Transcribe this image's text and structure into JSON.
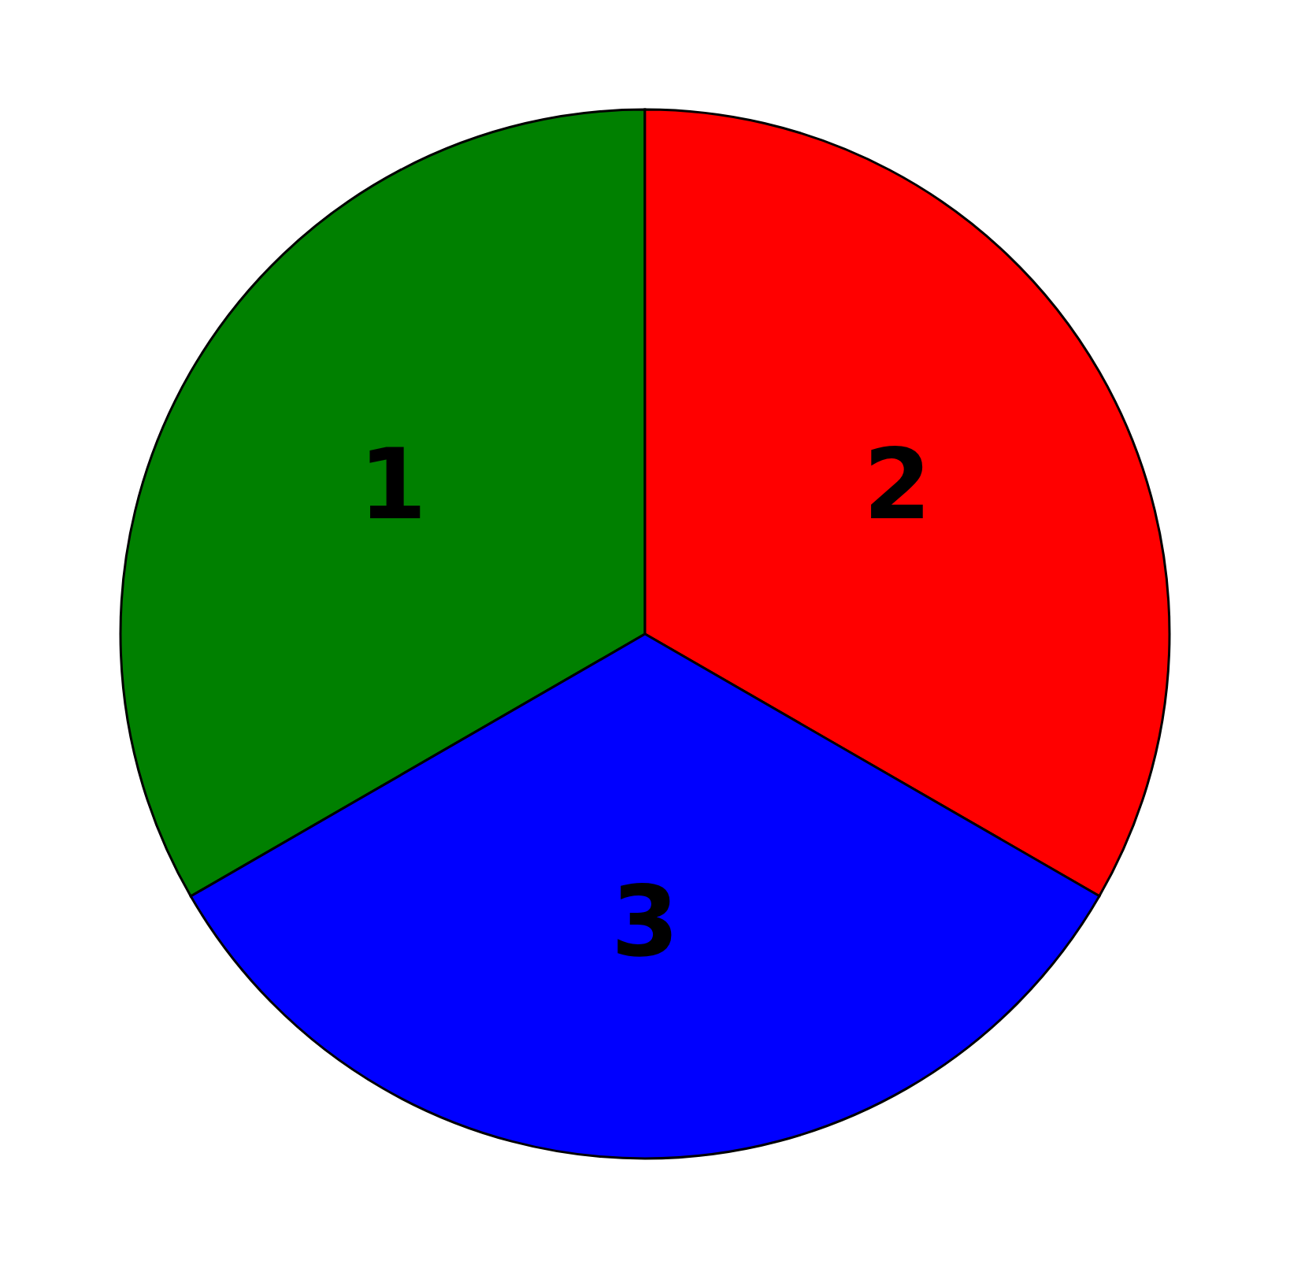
{
  "chart_data": {
    "type": "pie",
    "categories": [
      "1",
      "2",
      "3"
    ],
    "values": [
      33.33,
      33.33,
      33.34
    ],
    "colors": [
      "#008000",
      "#ff0000",
      "#0000ff"
    ]
  }
}
